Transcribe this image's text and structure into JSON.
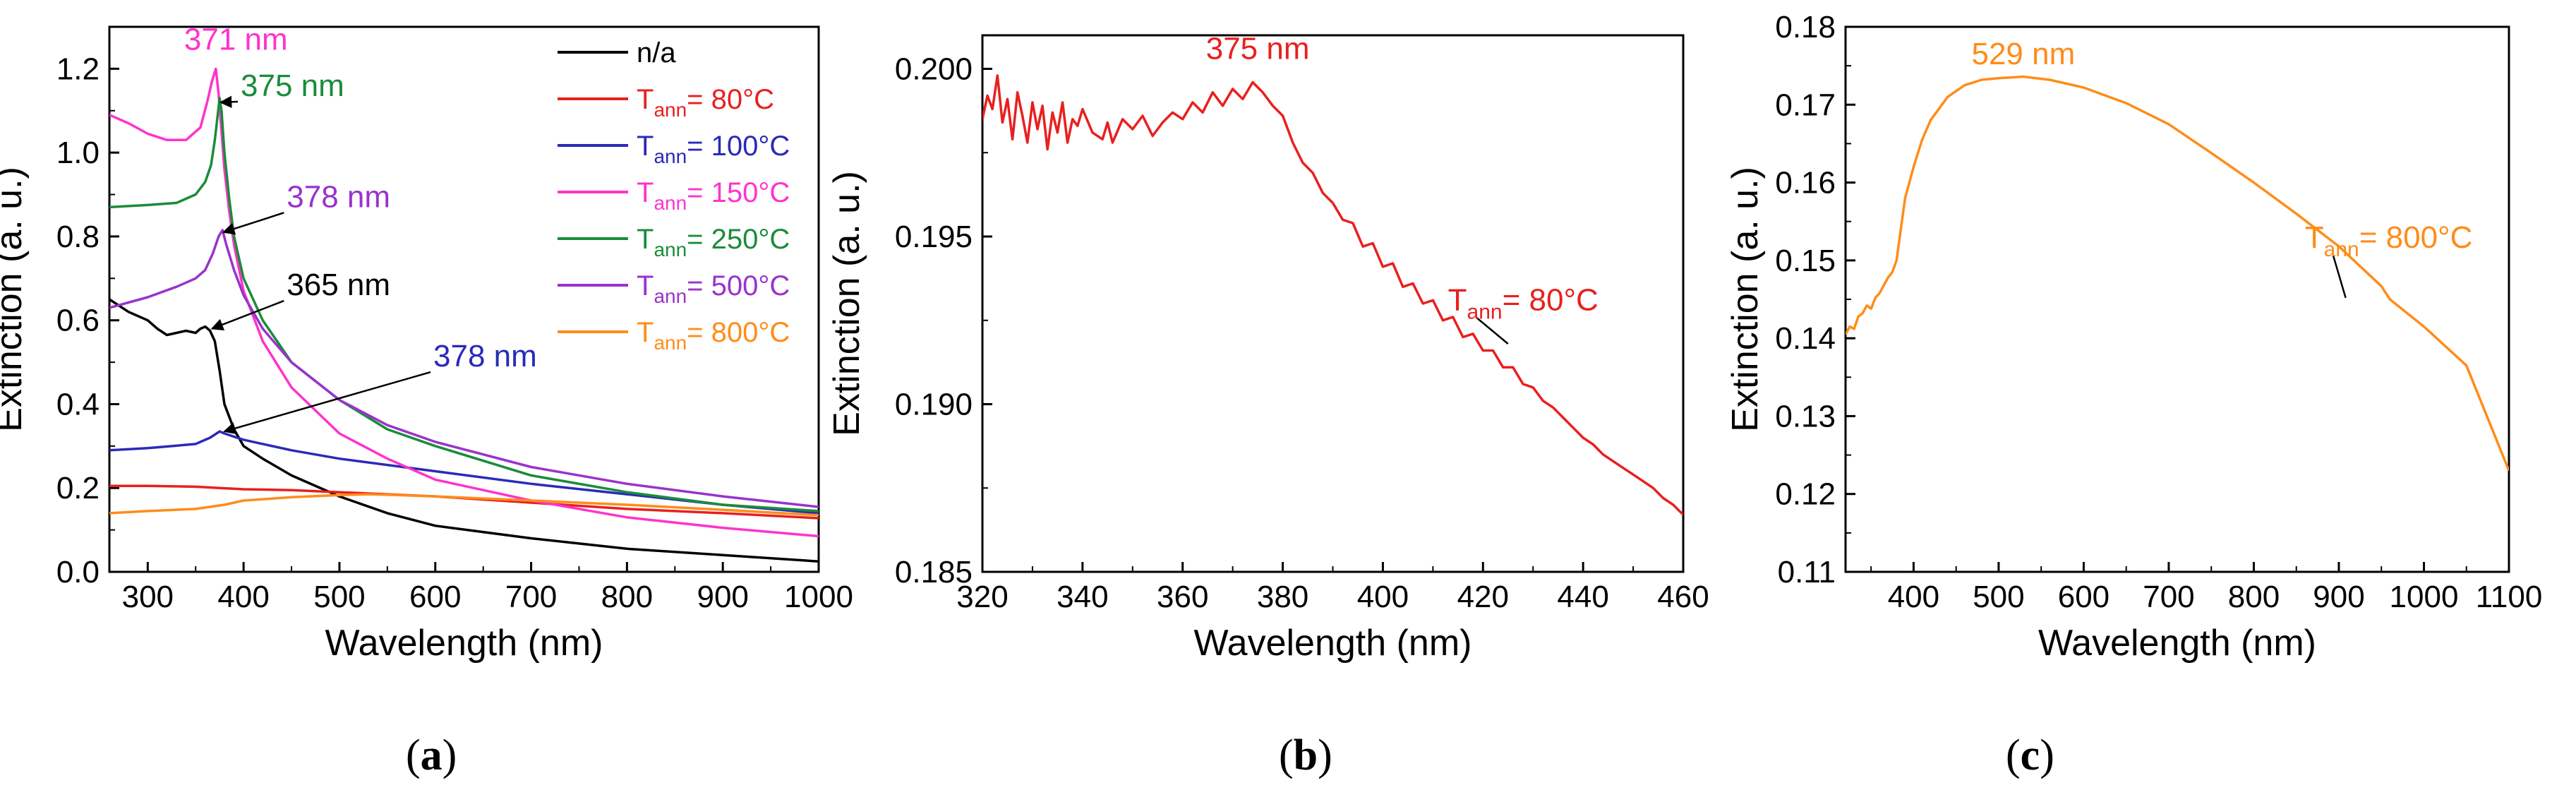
{
  "chart_data": [
    {
      "type": "line",
      "panel": "a",
      "caption": "(a)",
      "xlabel": "Wavelength (nm)",
      "ylabel": "Extinction (a. u.)",
      "xlim": [
        260,
        1000
      ],
      "ylim": [
        0.0,
        1.3
      ],
      "xticks": [
        300,
        400,
        500,
        600,
        700,
        800,
        900,
        1000
      ],
      "yticks": [
        0.0,
        0.2,
        0.4,
        0.6,
        0.8,
        1.0,
        1.2
      ],
      "ytick_decimals": 1,
      "legend_position": "top-right",
      "series": [
        {
          "name": "n/a",
          "legend": "n/a",
          "sub": "",
          "suffix": "",
          "color": "#000000",
          "x": [
            260,
            280,
            300,
            310,
            320,
            330,
            340,
            350,
            355,
            360,
            365,
            370,
            375,
            380,
            390,
            400,
            420,
            450,
            500,
            550,
            600,
            650,
            700,
            800,
            900,
            1000
          ],
          "y": [
            0.65,
            0.62,
            0.6,
            0.58,
            0.565,
            0.57,
            0.575,
            0.57,
            0.58,
            0.585,
            0.575,
            0.55,
            0.48,
            0.4,
            0.34,
            0.3,
            0.27,
            0.23,
            0.18,
            0.14,
            0.11,
            0.095,
            0.08,
            0.055,
            0.04,
            0.025
          ]
        },
        {
          "name": "T_ann = 80°C",
          "legend": "T",
          "sub": "ann",
          "suffix": "= 80°C",
          "color": "#e8201f",
          "x": [
            260,
            300,
            350,
            375,
            400,
            450,
            500,
            600,
            700,
            800,
            900,
            1000
          ],
          "y": [
            0.205,
            0.205,
            0.203,
            0.2,
            0.197,
            0.195,
            0.19,
            0.18,
            0.165,
            0.15,
            0.14,
            0.128
          ]
        },
        {
          "name": "T_ann = 100°C",
          "legend": "T",
          "sub": "ann",
          "suffix": "= 100°C",
          "color": "#2a2ab8",
          "x": [
            260,
            300,
            350,
            365,
            375,
            380,
            400,
            450,
            500,
            600,
            700,
            800,
            900,
            1000
          ],
          "y": [
            0.29,
            0.295,
            0.305,
            0.32,
            0.335,
            0.33,
            0.315,
            0.29,
            0.27,
            0.24,
            0.21,
            0.185,
            0.16,
            0.14
          ]
        },
        {
          "name": "T_ann = 150°C",
          "legend": "T",
          "sub": "ann",
          "suffix": "= 150°C",
          "color": "#ff33cc",
          "x": [
            260,
            280,
            300,
            320,
            340,
            355,
            362,
            367,
            371,
            374,
            377,
            380,
            385,
            390,
            400,
            420,
            450,
            500,
            550,
            600,
            700,
            800,
            900,
            1000
          ],
          "y": [
            1.09,
            1.07,
            1.045,
            1.03,
            1.03,
            1.06,
            1.12,
            1.17,
            1.2,
            1.14,
            1.05,
            0.96,
            0.86,
            0.78,
            0.67,
            0.55,
            0.44,
            0.33,
            0.27,
            0.22,
            0.17,
            0.13,
            0.105,
            0.085
          ]
        },
        {
          "name": "T_ann = 250°C",
          "legend": "T",
          "sub": "ann",
          "suffix": "= 250°C",
          "color": "#1a8c3a",
          "x": [
            260,
            300,
            330,
            350,
            360,
            366,
            370,
            373,
            375,
            377,
            380,
            385,
            390,
            400,
            420,
            450,
            500,
            550,
            600,
            700,
            800,
            900,
            1000
          ],
          "y": [
            0.87,
            0.875,
            0.88,
            0.9,
            0.93,
            0.97,
            1.03,
            1.09,
            1.13,
            1.1,
            1.0,
            0.89,
            0.8,
            0.7,
            0.6,
            0.5,
            0.41,
            0.34,
            0.3,
            0.23,
            0.19,
            0.16,
            0.145
          ]
        },
        {
          "name": "T_ann = 500°C",
          "legend": "T",
          "sub": "ann",
          "suffix": "= 500°C",
          "color": "#9933cc",
          "x": [
            260,
            300,
            330,
            350,
            360,
            368,
            374,
            378,
            382,
            390,
            400,
            420,
            450,
            500,
            550,
            600,
            700,
            800,
            900,
            1000
          ],
          "y": [
            0.63,
            0.655,
            0.68,
            0.7,
            0.72,
            0.76,
            0.8,
            0.815,
            0.78,
            0.72,
            0.66,
            0.58,
            0.5,
            0.41,
            0.35,
            0.31,
            0.25,
            0.21,
            0.18,
            0.155
          ]
        },
        {
          "name": "T_ann = 800°C",
          "legend": "T",
          "sub": "ann",
          "suffix": "= 800°C",
          "color": "#ff8c1a",
          "x": [
            260,
            300,
            350,
            380,
            400,
            450,
            500,
            529,
            550,
            600,
            700,
            800,
            900,
            1000
          ],
          "y": [
            0.14,
            0.145,
            0.15,
            0.16,
            0.17,
            0.178,
            0.183,
            0.185,
            0.184,
            0.18,
            0.17,
            0.16,
            0.148,
            0.135
          ]
        }
      ],
      "annotations": [
        {
          "text": "371 nm",
          "color": "#ff33cc",
          "x": 371,
          "y": 1.2,
          "tx": 338,
          "ty": 1.245,
          "anchor": "start"
        },
        {
          "text": "375 nm",
          "color": "#1a8c3a",
          "x": 376,
          "y": 1.12,
          "tx": 397,
          "ty": 1.135,
          "anchor": "start",
          "arrow": true
        },
        {
          "text": "378 nm",
          "color": "#9933cc",
          "x": 379,
          "y": 0.81,
          "tx": 445,
          "ty": 0.87,
          "anchor": "start",
          "arrow": true
        },
        {
          "text": "365 nm",
          "color": "#000000",
          "x": 367,
          "y": 0.58,
          "tx": 445,
          "ty": 0.66,
          "anchor": "start",
          "arrow": true
        },
        {
          "text": "378 nm",
          "color": "#2a2ab8",
          "x": 380,
          "y": 0.335,
          "tx": 598,
          "ty": 0.49,
          "anchor": "start",
          "arrow": true
        }
      ]
    },
    {
      "type": "line",
      "panel": "b",
      "caption": "(b)",
      "xlabel": "Wavelength (nm)",
      "ylabel": "Extinction (a. u.)",
      "xlim": [
        320,
        460
      ],
      "ylim": [
        0.185,
        0.201
      ],
      "xticks": [
        320,
        340,
        360,
        380,
        400,
        420,
        440,
        460
      ],
      "yticks": [
        0.185,
        0.19,
        0.195,
        0.2
      ],
      "ytick_decimals": 3,
      "series": [
        {
          "name": "T_ann = 80°C",
          "label": "T",
          "sub": "ann",
          "suffix": "= 80°C",
          "color": "#e8201f",
          "x": [
            320,
            321,
            322,
            323,
            324,
            325,
            326,
            327,
            328,
            329,
            330,
            331,
            332,
            333,
            334,
            335,
            336,
            337,
            338,
            339,
            340,
            342,
            344,
            345,
            346,
            348,
            350,
            352,
            354,
            356,
            358,
            360,
            362,
            364,
            366,
            368,
            370,
            372,
            374,
            376,
            378,
            380,
            382,
            384,
            386,
            388,
            390,
            392,
            394,
            396,
            398,
            400,
            402,
            404,
            406,
            408,
            410,
            412,
            414,
            416,
            418,
            420,
            422,
            424,
            426,
            428,
            430,
            432,
            434,
            436,
            438,
            440,
            442,
            444,
            446,
            448,
            450,
            452,
            454,
            456,
            458,
            460
          ],
          "y": [
            0.1985,
            0.1992,
            0.1988,
            0.1998,
            0.1984,
            0.1991,
            0.1979,
            0.1993,
            0.1986,
            0.1978,
            0.199,
            0.1982,
            0.1989,
            0.1976,
            0.1987,
            0.1981,
            0.199,
            0.1978,
            0.1985,
            0.1983,
            0.1988,
            0.1981,
            0.1979,
            0.1984,
            0.1978,
            0.1985,
            0.1982,
            0.1986,
            0.198,
            0.1984,
            0.1987,
            0.1985,
            0.199,
            0.1987,
            0.1993,
            0.1989,
            0.1994,
            0.1991,
            0.1996,
            0.1993,
            0.1989,
            0.1986,
            0.1978,
            0.1972,
            0.1969,
            0.1963,
            0.196,
            0.1955,
            0.1954,
            0.1947,
            0.1948,
            0.1941,
            0.1942,
            0.1935,
            0.1936,
            0.193,
            0.1931,
            0.1925,
            0.1926,
            0.192,
            0.1921,
            0.1916,
            0.1916,
            0.1911,
            0.1911,
            0.1906,
            0.1905,
            0.1901,
            0.1899,
            0.1896,
            0.1893,
            0.189,
            0.1888,
            0.1885,
            0.1883,
            0.1881,
            0.1879,
            0.1877,
            0.1875,
            0.1872,
            0.187,
            0.1867
          ]
        }
      ],
      "annotations": [
        {
          "text": "375 nm",
          "color": "#e8201f",
          "x": 375,
          "y": 0.1996,
          "tx": 375,
          "ty": 0.2003,
          "anchor": "middle"
        }
      ],
      "series_label": {
        "x": 425,
        "y": 0.1918,
        "tx": 413,
        "ty": 0.1928
      }
    },
    {
      "type": "line",
      "panel": "c",
      "caption": "(c)",
      "xlabel": "Wavelength (nm)",
      "ylabel": "Extinction (a. u.)",
      "xlim": [
        320,
        1100
      ],
      "ylim": [
        0.11,
        0.18
      ],
      "xticks": [
        400,
        500,
        600,
        700,
        800,
        900,
        1000,
        1100
      ],
      "yticks": [
        0.11,
        0.12,
        0.13,
        0.14,
        0.15,
        0.16,
        0.17,
        0.18
      ],
      "ytick_decimals": 2,
      "series": [
        {
          "name": "T_ann = 800°C",
          "label": "T",
          "sub": "ann",
          "suffix": "= 800°C",
          "color": "#ff8c1a",
          "x": [
            320,
            325,
            330,
            335,
            340,
            345,
            350,
            355,
            360,
            365,
            370,
            375,
            380,
            385,
            390,
            400,
            410,
            420,
            440,
            460,
            480,
            500,
            529,
            560,
            600,
            650,
            700,
            750,
            800,
            850,
            900,
            950,
            960,
            1000,
            1050,
            1100
          ],
          "y": [
            0.1405,
            0.1415,
            0.1412,
            0.1428,
            0.1432,
            0.1442,
            0.1438,
            0.1452,
            0.1458,
            0.1468,
            0.1478,
            0.1485,
            0.15,
            0.154,
            0.158,
            0.162,
            0.1655,
            0.168,
            0.171,
            0.1725,
            0.1732,
            0.1734,
            0.1736,
            0.1732,
            0.1722,
            0.1702,
            0.1675,
            0.1638,
            0.16,
            0.156,
            0.1518,
            0.1467,
            0.145,
            0.1415,
            0.1365,
            0.123
          ]
        }
      ],
      "annotations": [
        {
          "text": "529 nm",
          "color": "#ff8c1a",
          "x": 529,
          "y": 0.1736,
          "tx": 529,
          "ty": 0.1752,
          "anchor": "middle"
        }
      ],
      "series_label": {
        "x": 908,
        "y": 0.1452,
        "tx": 860,
        "ty": 0.1516
      }
    }
  ]
}
